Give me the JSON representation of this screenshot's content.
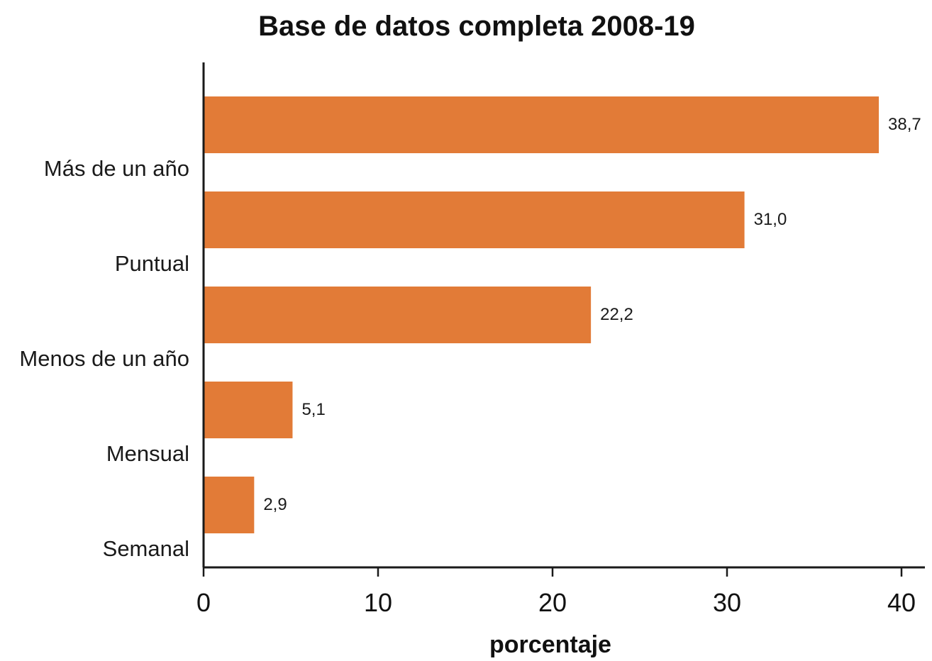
{
  "chart_data": {
    "type": "bar",
    "orientation": "horizontal",
    "title": "Base de datos completa 2008-19",
    "xlabel": "porcentaje",
    "ylabel": "",
    "categories": [
      "Más de un año",
      "Puntual",
      "Menos de un año",
      "Mensual",
      "Semanal"
    ],
    "values": [
      38.7,
      31.0,
      22.2,
      5.1,
      2.9
    ],
    "value_labels": [
      "38,7",
      "31,0",
      "22,2",
      "5,1",
      "2,9"
    ],
    "xlim": [
      0,
      40
    ],
    "xticks": [
      0,
      10,
      20,
      30,
      40
    ],
    "xtick_labels": [
      "0",
      "10",
      "20",
      "30",
      "40"
    ],
    "grid": false,
    "legend": "none",
    "colors": {
      "bar": "#e27b37",
      "axis": "#1a1a1a",
      "text": "#111111"
    }
  }
}
